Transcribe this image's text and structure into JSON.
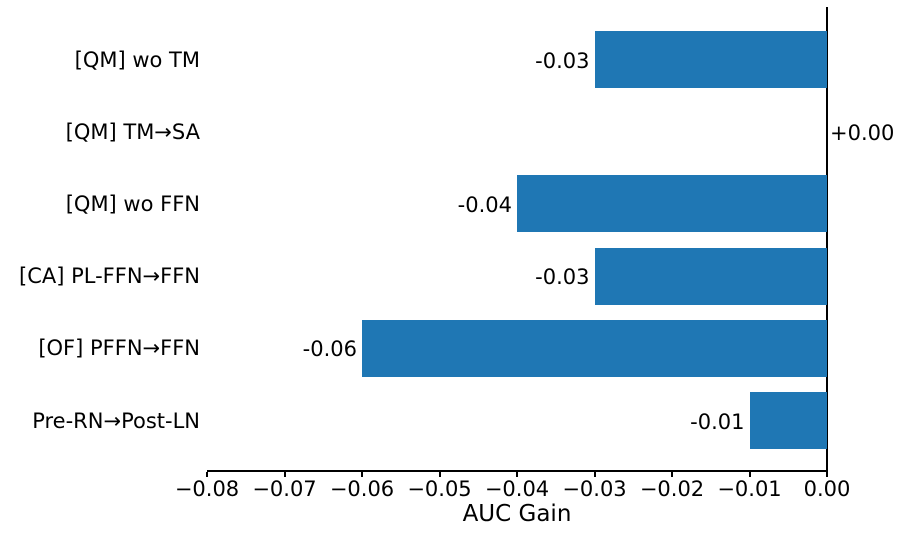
{
  "chart_data": {
    "type": "bar",
    "orientation": "horizontal",
    "title": "",
    "xlabel": "AUC Gain",
    "ylabel": "",
    "xlim": [
      -0.08,
      0.0
    ],
    "grid": false,
    "legend": false,
    "bar_color": "#1f77b4",
    "axis_color": "#000000",
    "categories": [
      "[QM] wo TM",
      "[QM] TM→SA",
      "[QM] wo FFN",
      "[CA] PL-FFN→FFN",
      "[OF] PFFN→FFN",
      "Pre-RN→Post-LN"
    ],
    "values": [
      -0.03,
      0.0,
      -0.04,
      -0.03,
      -0.06,
      -0.01
    ],
    "bar_labels": [
      "-0.03",
      "+0.00",
      "-0.04",
      "-0.03",
      "-0.06",
      "-0.01"
    ],
    "x_ticks": [
      {
        "value": -0.08,
        "label": "−0.08"
      },
      {
        "value": -0.07,
        "label": "−0.07"
      },
      {
        "value": -0.06,
        "label": "−0.06"
      },
      {
        "value": -0.05,
        "label": "−0.05"
      },
      {
        "value": -0.04,
        "label": "−0.04"
      },
      {
        "value": -0.03,
        "label": "−0.03"
      },
      {
        "value": -0.02,
        "label": "−0.02"
      },
      {
        "value": -0.01,
        "label": "−0.01"
      },
      {
        "value": 0.0,
        "label": "0.00"
      }
    ]
  }
}
